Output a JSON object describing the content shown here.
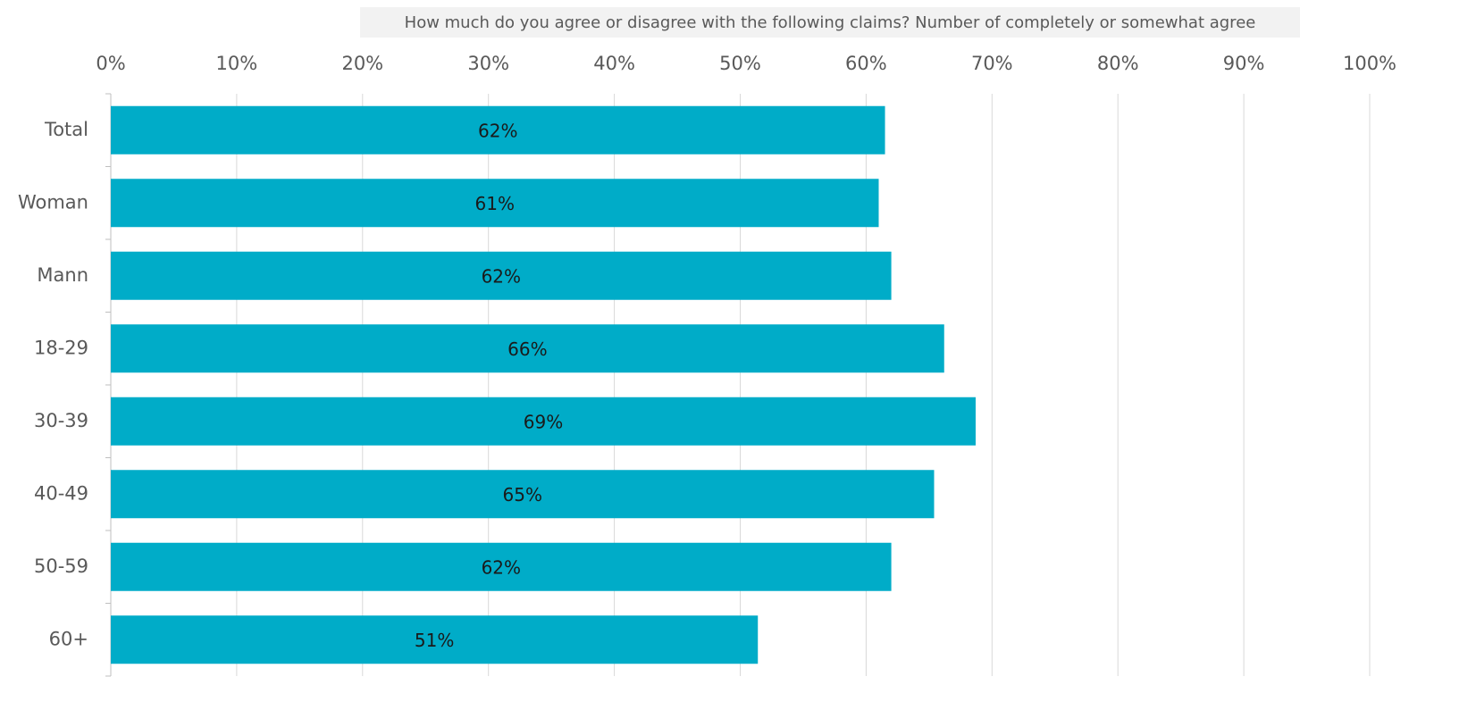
{
  "chart_data": {
    "type": "bar",
    "orientation": "horizontal",
    "title": "How much do you agree or disagree with the following claims? Number of completely or somewhat agree",
    "categories": [
      "Total",
      "Woman",
      "Mann",
      "18-29",
      "30-39",
      "40-49",
      "50-59",
      "60+"
    ],
    "values": [
      61.5,
      61.0,
      62.0,
      66.2,
      68.7,
      65.4,
      62.0,
      51.4
    ],
    "value_labels": [
      "62%",
      "61%",
      "62%",
      "66%",
      "69%",
      "65%",
      "62%",
      "51%"
    ],
    "color": "#00acc8",
    "xlim": [
      0,
      100
    ],
    "xticks": [
      {
        "value": 0,
        "label": "0%"
      },
      {
        "value": 10,
        "label": "10%"
      },
      {
        "value": 20,
        "label": "20%"
      },
      {
        "value": 30,
        "label": "30%"
      },
      {
        "value": 40,
        "label": "40%"
      },
      {
        "value": 50,
        "label": "50%"
      },
      {
        "value": 60,
        "label": "60%"
      },
      {
        "value": 70,
        "label": "70%"
      },
      {
        "value": 80,
        "label": "80%"
      },
      {
        "value": 90,
        "label": "90%"
      },
      {
        "value": 100,
        "label": "100%"
      }
    ],
    "grid": true
  }
}
